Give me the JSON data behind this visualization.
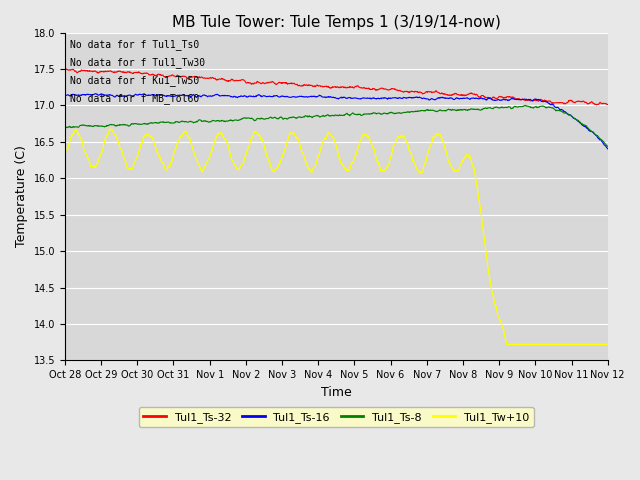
{
  "title": "MB Tule Tower: Tule Temps 1 (3/19/14-now)",
  "xlabel": "Time",
  "ylabel": "Temperature (C)",
  "ylim": [
    13.5,
    18.0
  ],
  "background_color": "#e8e8e8",
  "plot_bg_color": "#d8d8d8",
  "legend_entries": [
    "Tul1_Ts-32",
    "Tul1_Ts-16",
    "Tul1_Ts-8",
    "Tul1_Tw+10"
  ],
  "legend_colors": [
    "red",
    "blue",
    "green",
    "yellow"
  ],
  "no_data_texts": [
    "No data for f Tul1_Ts0",
    "No data for f Tul1_Tw30",
    "No data for f Ku1_Tw50",
    "No data for f MB_Tol60"
  ],
  "x_tick_labels": [
    "Oct 28",
    "Oct 29",
    "Oct 30",
    "Oct 31",
    "Nov 1",
    "Nov 2",
    "Nov 3",
    "Nov 4",
    "Nov 5",
    "Nov 6",
    "Nov 7",
    "Nov 8",
    "Nov 9",
    "Nov 10",
    "Nov 11",
    "Nov 12"
  ],
  "num_points": 1500,
  "seed": 42
}
